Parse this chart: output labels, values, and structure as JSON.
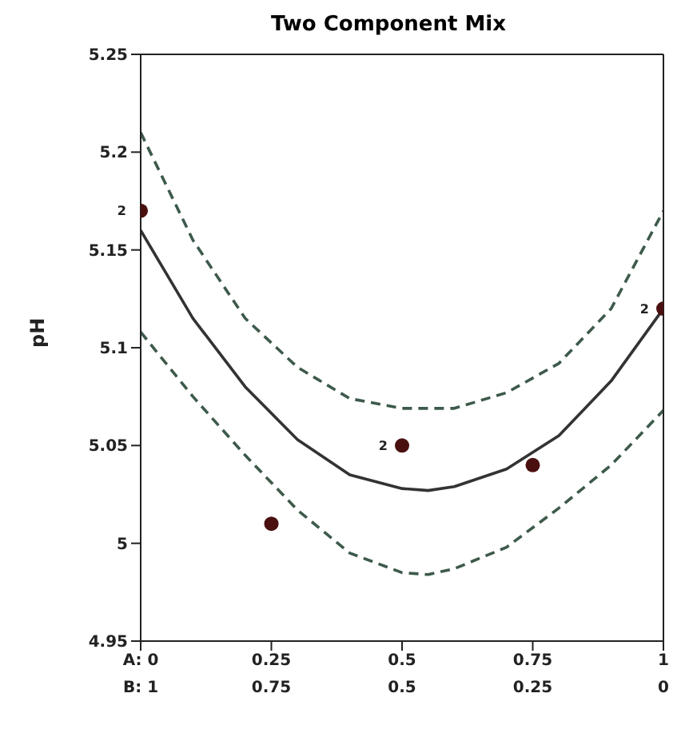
{
  "chart_data": {
    "type": "line",
    "title": "Two Component Mix",
    "ylabel": "pH",
    "xlim": [
      0,
      1
    ],
    "xticks": [
      {
        "value": 0,
        "label": "A: 0"
      },
      0.25,
      0.5,
      0.75,
      1
    ],
    "x2lim": [
      1,
      0
    ],
    "x2ticks": [
      {
        "value": 1,
        "label": "B: 1"
      },
      0.75,
      0.5,
      0.25,
      0
    ],
    "ylim": [
      4.95,
      5.25
    ],
    "yticks": [
      4.95,
      5,
      5.05,
      5.1,
      5.15,
      5.2,
      5.25
    ],
    "series": [
      {
        "color": "#333333",
        "line_style": "solid",
        "x": [
          0,
          0.1,
          0.2,
          0.3,
          0.4,
          0.5,
          0.55,
          0.6,
          0.7,
          0.8,
          0.9,
          1
        ],
        "values": [
          5.16,
          5.115,
          5.08,
          5.053,
          5.035,
          5.028,
          5.027,
          5.029,
          5.038,
          5.055,
          5.083,
          5.12
        ]
      },
      {
        "color": "#3d5a4a",
        "line_style": "dashed",
        "x": [
          0,
          0.1,
          0.2,
          0.3,
          0.4,
          0.5,
          0.6,
          0.7,
          0.8,
          0.9,
          1
        ],
        "values": [
          5.21,
          5.155,
          5.115,
          5.09,
          5.074,
          5.069,
          5.069,
          5.077,
          5.092,
          5.12,
          5.17
        ]
      },
      {
        "color": "#3d5a4a",
        "line_style": "dashed",
        "x": [
          0,
          0.1,
          0.2,
          0.3,
          0.4,
          0.5,
          0.55,
          0.6,
          0.7,
          0.8,
          0.9,
          1
        ],
        "values": [
          5.108,
          5.075,
          5.045,
          5.017,
          4.995,
          4.985,
          4.984,
          4.987,
          4.998,
          5.018,
          5.04,
          5.068
        ]
      },
      {
        "type": "scatter",
        "color": "#4a1010",
        "marker": "circle",
        "x": [
          0,
          0.25,
          0.5,
          0.75,
          1
        ],
        "values": [
          5.17,
          5.01,
          5.05,
          5.04,
          5.12
        ]
      }
    ],
    "annotations": [
      {
        "text": "2",
        "x": 0,
        "y": 5.17
      },
      {
        "text": "2",
        "x": 0.5,
        "y": 5.05
      },
      {
        "text": "2",
        "x": 1,
        "y": 5.12
      }
    ],
    "grid": false,
    "legend": false
  }
}
